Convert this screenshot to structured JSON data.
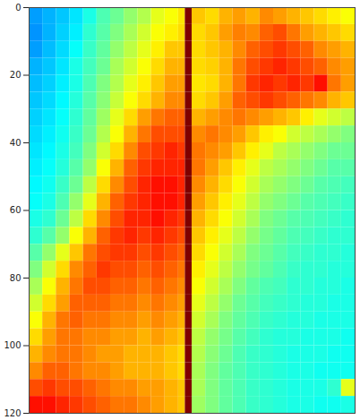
{
  "chart_data": {
    "type": "heatmap",
    "color": "jet",
    "tick_labels": "y",
    "xlim": [
      0,
      96
    ],
    "ylim": [
      0,
      120
    ],
    "yticks": [
      0,
      20,
      40,
      60,
      80,
      100,
      120
    ],
    "zlim": [
      0,
      1
    ],
    "x_edges": [
      0,
      4,
      8,
      12,
      16,
      20,
      24,
      28,
      32,
      36,
      40,
      44,
      46,
      48,
      52,
      56,
      60,
      64,
      68,
      72,
      76,
      80,
      84,
      88,
      92,
      96
    ],
    "y_edges": [
      0,
      5,
      10,
      15,
      20,
      25,
      30,
      35,
      40,
      45,
      50,
      55,
      60,
      65,
      70,
      75,
      80,
      85,
      90,
      95,
      100,
      105,
      110,
      115,
      120
    ],
    "cells": [
      [
        0.28,
        0.3,
        0.32,
        0.35,
        0.4,
        0.45,
        0.48,
        0.52,
        0.55,
        0.6,
        0.62,
        0.65,
        1,
        0.68,
        0.66,
        0.7,
        0.72,
        0.7,
        0.74,
        0.72,
        0.7,
        0.68,
        0.66,
        0.64,
        0.62
      ],
      [
        0.27,
        0.3,
        0.33,
        0.36,
        0.42,
        0.46,
        0.5,
        0.54,
        0.58,
        0.62,
        0.64,
        0.66,
        1,
        0.66,
        0.68,
        0.72,
        0.75,
        0.74,
        0.78,
        0.8,
        0.76,
        0.72,
        0.7,
        0.68,
        0.66
      ],
      [
        0.28,
        0.31,
        0.34,
        0.38,
        0.43,
        0.47,
        0.52,
        0.56,
        0.6,
        0.64,
        0.68,
        0.68,
        1,
        0.66,
        0.68,
        0.7,
        0.74,
        0.78,
        0.8,
        0.82,
        0.8,
        0.78,
        0.74,
        0.72,
        0.7
      ],
      [
        0.3,
        0.32,
        0.35,
        0.4,
        0.44,
        0.48,
        0.54,
        0.58,
        0.62,
        0.66,
        0.7,
        0.7,
        1,
        0.66,
        0.67,
        0.7,
        0.76,
        0.8,
        0.82,
        0.84,
        0.82,
        0.8,
        0.78,
        0.74,
        0.72
      ],
      [
        0.31,
        0.33,
        0.36,
        0.4,
        0.45,
        0.5,
        0.55,
        0.6,
        0.64,
        0.68,
        0.72,
        0.72,
        1,
        0.65,
        0.66,
        0.7,
        0.76,
        0.82,
        0.84,
        0.82,
        0.84,
        0.82,
        0.86,
        0.76,
        0.72
      ],
      [
        0.32,
        0.34,
        0.37,
        0.41,
        0.46,
        0.51,
        0.57,
        0.62,
        0.66,
        0.7,
        0.74,
        0.74,
        1,
        0.66,
        0.68,
        0.72,
        0.78,
        0.8,
        0.82,
        0.8,
        0.78,
        0.76,
        0.74,
        0.7,
        0.68
      ],
      [
        0.33,
        0.35,
        0.38,
        0.42,
        0.47,
        0.53,
        0.6,
        0.66,
        0.72,
        0.76,
        0.78,
        0.78,
        1,
        0.7,
        0.72,
        0.74,
        0.76,
        0.74,
        0.72,
        0.7,
        0.68,
        0.64,
        0.6,
        0.58,
        0.56
      ],
      [
        0.34,
        0.36,
        0.39,
        0.43,
        0.48,
        0.55,
        0.62,
        0.7,
        0.76,
        0.8,
        0.8,
        0.8,
        1,
        0.74,
        0.76,
        0.74,
        0.72,
        0.68,
        0.64,
        0.62,
        0.58,
        0.56,
        0.54,
        0.52,
        0.5
      ],
      [
        0.35,
        0.37,
        0.4,
        0.44,
        0.5,
        0.58,
        0.66,
        0.74,
        0.8,
        0.82,
        0.84,
        0.82,
        1,
        0.76,
        0.74,
        0.72,
        0.68,
        0.64,
        0.6,
        0.56,
        0.54,
        0.52,
        0.5,
        0.48,
        0.48
      ],
      [
        0.36,
        0.38,
        0.41,
        0.46,
        0.52,
        0.62,
        0.7,
        0.78,
        0.82,
        0.84,
        0.84,
        0.84,
        1,
        0.76,
        0.72,
        0.68,
        0.64,
        0.6,
        0.56,
        0.54,
        0.52,
        0.5,
        0.48,
        0.46,
        0.46
      ],
      [
        0.37,
        0.39,
        0.43,
        0.48,
        0.56,
        0.66,
        0.74,
        0.8,
        0.84,
        0.86,
        0.86,
        0.84,
        1,
        0.74,
        0.7,
        0.66,
        0.62,
        0.58,
        0.54,
        0.52,
        0.5,
        0.48,
        0.46,
        0.45,
        0.44
      ],
      [
        0.38,
        0.4,
        0.45,
        0.52,
        0.6,
        0.7,
        0.78,
        0.82,
        0.84,
        0.86,
        0.86,
        0.84,
        1,
        0.72,
        0.68,
        0.64,
        0.6,
        0.56,
        0.52,
        0.5,
        0.48,
        0.46,
        0.45,
        0.44,
        0.43
      ],
      [
        0.4,
        0.42,
        0.48,
        0.56,
        0.66,
        0.74,
        0.8,
        0.84,
        0.84,
        0.86,
        0.84,
        0.82,
        1,
        0.7,
        0.66,
        0.62,
        0.58,
        0.54,
        0.5,
        0.48,
        0.46,
        0.45,
        0.44,
        0.43,
        0.42
      ],
      [
        0.42,
        0.46,
        0.52,
        0.62,
        0.7,
        0.78,
        0.82,
        0.84,
        0.82,
        0.84,
        0.82,
        0.8,
        1,
        0.68,
        0.64,
        0.6,
        0.56,
        0.52,
        0.49,
        0.47,
        0.45,
        0.44,
        0.43,
        0.42,
        0.42
      ],
      [
        0.46,
        0.52,
        0.6,
        0.68,
        0.76,
        0.8,
        0.82,
        0.82,
        0.8,
        0.82,
        0.8,
        0.78,
        1,
        0.66,
        0.62,
        0.58,
        0.54,
        0.5,
        0.48,
        0.46,
        0.44,
        0.43,
        0.42,
        0.42,
        0.41
      ],
      [
        0.5,
        0.58,
        0.66,
        0.74,
        0.78,
        0.82,
        0.8,
        0.8,
        0.78,
        0.8,
        0.78,
        0.76,
        1,
        0.64,
        0.6,
        0.56,
        0.52,
        0.49,
        0.47,
        0.45,
        0.43,
        0.42,
        0.42,
        0.41,
        0.41
      ],
      [
        0.54,
        0.62,
        0.7,
        0.76,
        0.8,
        0.8,
        0.78,
        0.78,
        0.76,
        0.78,
        0.76,
        0.74,
        1,
        0.62,
        0.58,
        0.54,
        0.5,
        0.47,
        0.45,
        0.44,
        0.42,
        0.42,
        0.41,
        0.41,
        0.4
      ],
      [
        0.58,
        0.66,
        0.72,
        0.78,
        0.78,
        0.78,
        0.76,
        0.76,
        0.74,
        0.76,
        0.74,
        0.72,
        1,
        0.6,
        0.56,
        0.52,
        0.48,
        0.46,
        0.44,
        0.43,
        0.42,
        0.41,
        0.41,
        0.4,
        0.4
      ],
      [
        0.62,
        0.7,
        0.76,
        0.78,
        0.76,
        0.76,
        0.74,
        0.74,
        0.72,
        0.74,
        0.72,
        0.7,
        1,
        0.58,
        0.54,
        0.5,
        0.47,
        0.45,
        0.43,
        0.42,
        0.41,
        0.41,
        0.4,
        0.4,
        0.4
      ],
      [
        0.66,
        0.72,
        0.76,
        0.76,
        0.74,
        0.74,
        0.72,
        0.72,
        0.7,
        0.72,
        0.7,
        0.68,
        1,
        0.56,
        0.52,
        0.49,
        0.46,
        0.44,
        0.42,
        0.41,
        0.41,
        0.4,
        0.4,
        0.4,
        0.39
      ],
      [
        0.7,
        0.74,
        0.76,
        0.76,
        0.74,
        0.72,
        0.72,
        0.7,
        0.7,
        0.7,
        0.68,
        0.66,
        1,
        0.55,
        0.51,
        0.48,
        0.45,
        0.43,
        0.42,
        0.41,
        0.4,
        0.4,
        0.4,
        0.39,
        0.39
      ],
      [
        0.74,
        0.78,
        0.78,
        0.76,
        0.74,
        0.74,
        0.72,
        0.7,
        0.7,
        0.7,
        0.68,
        0.66,
        1,
        0.54,
        0.5,
        0.47,
        0.45,
        0.43,
        0.42,
        0.41,
        0.4,
        0.4,
        0.39,
        0.39,
        0.39
      ],
      [
        0.8,
        0.82,
        0.8,
        0.8,
        0.78,
        0.76,
        0.74,
        0.74,
        0.72,
        0.72,
        0.7,
        0.68,
        1,
        0.54,
        0.5,
        0.47,
        0.45,
        0.43,
        0.42,
        0.41,
        0.4,
        0.4,
        0.4,
        0.42,
        0.6
      ],
      [
        0.86,
        0.86,
        0.84,
        0.82,
        0.8,
        0.78,
        0.76,
        0.76,
        0.74,
        0.72,
        0.7,
        0.68,
        1,
        0.53,
        0.5,
        0.47,
        0.45,
        0.43,
        0.42,
        0.41,
        0.4,
        0.4,
        0.39,
        0.39,
        0.4
      ]
    ]
  }
}
